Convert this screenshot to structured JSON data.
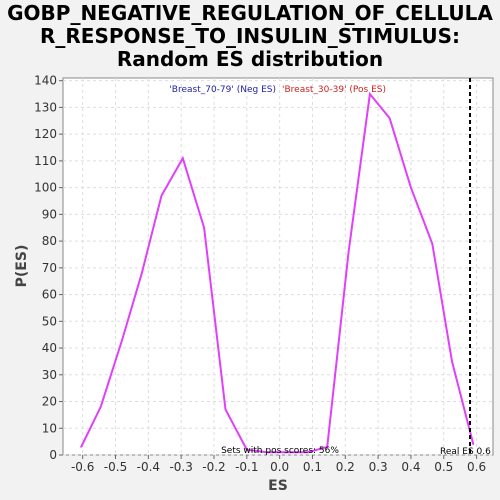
{
  "chart_data": {
    "type": "line",
    "title_lines": [
      "GOBP_NEGATIVE_REGULATION_OF_CELLULA",
      "R_RESPONSE_TO_INSULIN_STIMULUS:",
      "Random ES distribution"
    ],
    "xlabel": "ES",
    "ylabel": "P(ES)",
    "xlim": [
      -0.66,
      0.65
    ],
    "ylim": [
      0,
      141
    ],
    "xticks": [
      -0.6,
      -0.5,
      -0.4,
      -0.3,
      -0.2,
      -0.1,
      0.0,
      0.1,
      0.2,
      0.3,
      0.4,
      0.5,
      0.6
    ],
    "xtick_labels": [
      "-0.6",
      "-0.5",
      "-0.4",
      "-0.3",
      "-0.2",
      "-0.1",
      "0.0",
      "0.1",
      "0.2",
      "0.3",
      "0.4",
      "0.5",
      "0.6"
    ],
    "yticks": [
      0,
      10,
      20,
      30,
      40,
      50,
      60,
      70,
      80,
      90,
      100,
      110,
      120,
      130,
      140
    ],
    "grid": true,
    "legend": {
      "neg": {
        "text": "'Breast_70-79' (Neg ES)",
        "color": "#2222aa"
      },
      "pos": {
        "text": "'Breast_30-39' (Pos ES)",
        "color": "#cc2222"
      }
    },
    "line_color": "#e040fb",
    "series": [
      {
        "x": [
          -0.605,
          -0.545,
          -0.48,
          -0.42,
          -0.36,
          -0.295,
          -0.23,
          -0.165,
          -0.1,
          -0.04,
          0.02,
          0.085,
          0.145,
          0.21,
          0.275,
          0.335,
          0.4,
          0.465,
          0.525,
          0.59
        ],
        "y": [
          3,
          18,
          43,
          68,
          97,
          111,
          85,
          17,
          2,
          1,
          1,
          1,
          3,
          76,
          135,
          126,
          100,
          79,
          35,
          4
        ]
      }
    ],
    "real_es": {
      "x": 0.58,
      "label": "Real ES 0.6"
    },
    "annotation": "Sets with pos scores: 56%"
  }
}
